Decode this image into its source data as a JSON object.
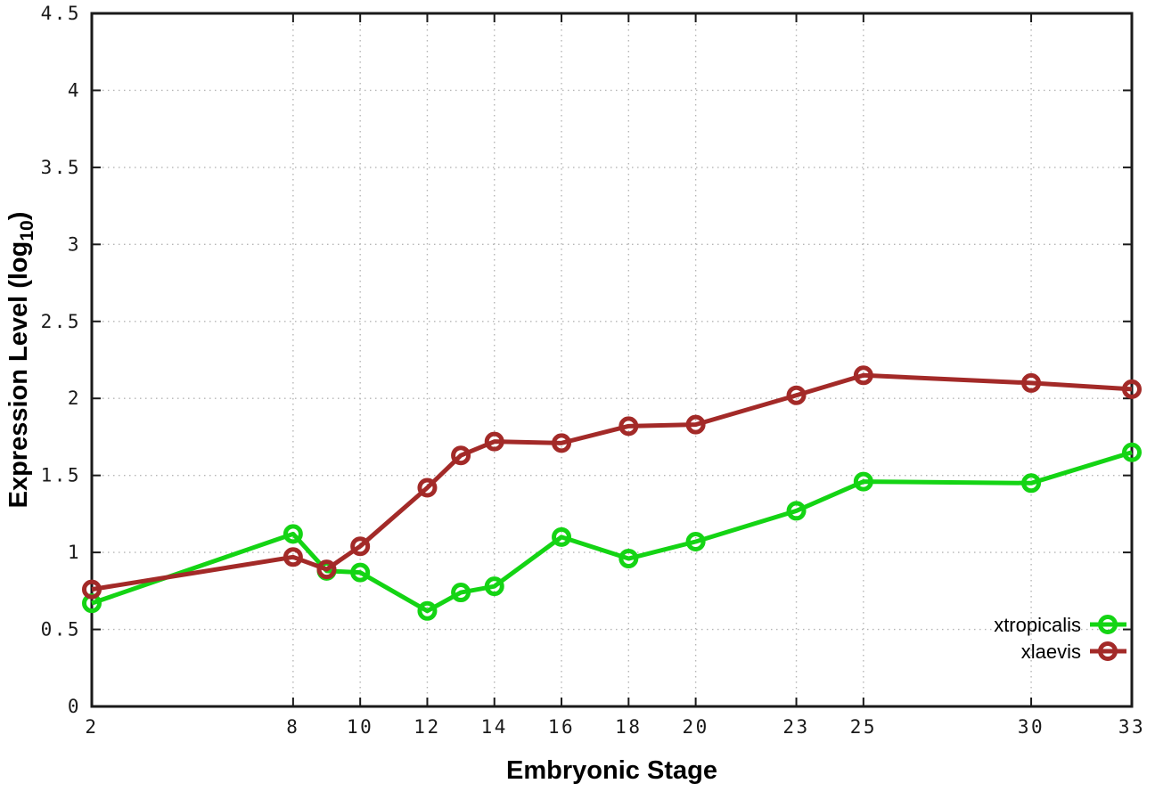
{
  "chart_data": {
    "type": "line",
    "title": "",
    "xlabel": "Embryonic Stage",
    "ylabel_text": "Expression Level (log10)",
    "ylabel_parts": {
      "main": "Expression Level (log",
      "sub": "10",
      "end": ")"
    },
    "x": [
      2,
      8,
      9,
      10,
      12,
      13,
      14,
      16,
      18,
      20,
      23,
      25,
      30,
      33
    ],
    "xticks": [
      2,
      8,
      10,
      12,
      14,
      16,
      18,
      20,
      23,
      25,
      30,
      33
    ],
    "yticks": [
      0,
      0.5,
      1,
      1.5,
      2,
      2.5,
      3,
      3.5,
      4,
      4.5
    ],
    "ytick_labels": [
      "0",
      "0.5",
      "1",
      "1.5",
      "2",
      "2.5",
      "3",
      "3.5",
      "4",
      "4.5"
    ],
    "xlim": [
      2,
      33
    ],
    "ylim": [
      0,
      4.5
    ],
    "grid": true,
    "grid_color": "#b5b5b5",
    "border_color": "#1a1a1a",
    "background_color": "#ffffff",
    "legend_position": "inside-bottom-right",
    "series": [
      {
        "name": "xtropicalis",
        "color": "#14d414",
        "marker": "open-circle",
        "values": [
          0.67,
          1.12,
          0.88,
          0.87,
          0.62,
          0.74,
          0.78,
          1.1,
          0.96,
          1.07,
          1.27,
          1.46,
          1.45,
          1.65
        ]
      },
      {
        "name": "xlaevis",
        "color": "#a32a28",
        "marker": "open-circle",
        "values": [
          0.76,
          0.97,
          0.89,
          1.04,
          1.42,
          1.63,
          1.72,
          1.71,
          1.82,
          1.83,
          2.02,
          2.15,
          2.1,
          2.06
        ]
      }
    ]
  }
}
